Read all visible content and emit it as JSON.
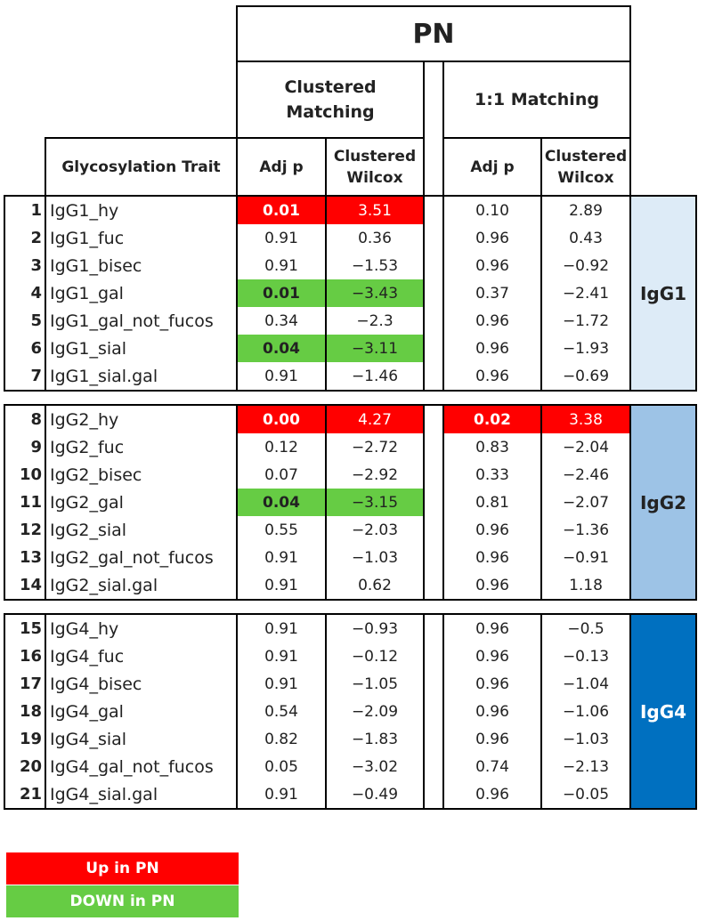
{
  "header": {
    "group": "PN",
    "clustered": "Clustered Matching",
    "one_to_one": "1:1 Matching",
    "trait": "Glycosylation Trait",
    "adjp": "Adj p",
    "wilcox": "Clustered Wilcox"
  },
  "groups": [
    {
      "label": "IgG1",
      "color": "#ddebf7",
      "rows": [
        {
          "n": "1",
          "trait": "IgG1_hy",
          "p1": "0.01",
          "w1": "3.51",
          "p2": "0.10",
          "w2": "2.89",
          "h1": "up",
          "h2": ""
        },
        {
          "n": "2",
          "trait": "IgG1_fuc",
          "p1": "0.91",
          "w1": "0.36",
          "p2": "0.96",
          "w2": "0.43",
          "h1": "",
          "h2": ""
        },
        {
          "n": "3",
          "trait": "IgG1_bisec",
          "p1": "0.91",
          "w1": "−1.53",
          "p2": "0.96",
          "w2": "−0.92",
          "h1": "",
          "h2": ""
        },
        {
          "n": "4",
          "trait": "IgG1_gal",
          "p1": "0.01",
          "w1": "−3.43",
          "p2": "0.37",
          "w2": "−2.41",
          "h1": "down",
          "h2": ""
        },
        {
          "n": "5",
          "trait": "IgG1_gal_not_fucos",
          "p1": "0.34",
          "w1": "−2.3",
          "p2": "0.96",
          "w2": "−1.72",
          "h1": "",
          "h2": ""
        },
        {
          "n": "6",
          "trait": "IgG1_sial",
          "p1": "0.04",
          "w1": "−3.11",
          "p2": "0.96",
          "w2": "−1.93",
          "h1": "down",
          "h2": ""
        },
        {
          "n": "7",
          "trait": "IgG1_sial.gal",
          "p1": "0.91",
          "w1": "−1.46",
          "p2": "0.96",
          "w2": "−0.69",
          "h1": "",
          "h2": ""
        }
      ]
    },
    {
      "label": "IgG2",
      "color": "#9dc3e6",
      "rows": [
        {
          "n": "8",
          "trait": "IgG2_hy",
          "p1": "0.00",
          "w1": "4.27",
          "p2": "0.02",
          "w2": "3.38",
          "h1": "up",
          "h2": "up"
        },
        {
          "n": "9",
          "trait": "IgG2_fuc",
          "p1": "0.12",
          "w1": "−2.72",
          "p2": "0.83",
          "w2": "−2.04",
          "h1": "",
          "h2": ""
        },
        {
          "n": "10",
          "trait": "IgG2_bisec",
          "p1": "0.07",
          "w1": "−2.92",
          "p2": "0.33",
          "w2": "−2.46",
          "h1": "",
          "h2": ""
        },
        {
          "n": "11",
          "trait": "IgG2_gal",
          "p1": "0.04",
          "w1": "−3.15",
          "p2": "0.81",
          "w2": "−2.07",
          "h1": "down",
          "h2": ""
        },
        {
          "n": "12",
          "trait": "IgG2_sial",
          "p1": "0.55",
          "w1": "−2.03",
          "p2": "0.96",
          "w2": "−1.36",
          "h1": "",
          "h2": ""
        },
        {
          "n": "13",
          "trait": "IgG2_gal_not_fucos",
          "p1": "0.91",
          "w1": "−1.03",
          "p2": "0.96",
          "w2": "−0.91",
          "h1": "",
          "h2": ""
        },
        {
          "n": "14",
          "trait": "IgG2_sial.gal",
          "p1": "0.91",
          "w1": "0.62",
          "p2": "0.96",
          "w2": "1.18",
          "h1": "",
          "h2": ""
        }
      ]
    },
    {
      "label": "IgG4",
      "color": "#0070c0",
      "rows": [
        {
          "n": "15",
          "trait": "IgG4_hy",
          "p1": "0.91",
          "w1": "−0.93",
          "p2": "0.96",
          "w2": "−0.5",
          "h1": "",
          "h2": ""
        },
        {
          "n": "16",
          "trait": "IgG4_fuc",
          "p1": "0.91",
          "w1": "−0.12",
          "p2": "0.96",
          "w2": "−0.13",
          "h1": "",
          "h2": ""
        },
        {
          "n": "17",
          "trait": "IgG4_bisec",
          "p1": "0.91",
          "w1": "−1.05",
          "p2": "0.96",
          "w2": "−1.04",
          "h1": "",
          "h2": ""
        },
        {
          "n": "18",
          "trait": "IgG4_gal",
          "p1": "0.54",
          "w1": "−2.09",
          "p2": "0.96",
          "w2": "−1.06",
          "h1": "",
          "h2": ""
        },
        {
          "n": "19",
          "trait": "IgG4_sial",
          "p1": "0.82",
          "w1": "−1.83",
          "p2": "0.96",
          "w2": "−1.03",
          "h1": "",
          "h2": ""
        },
        {
          "n": "20",
          "trait": "IgG4_gal_not_fucos",
          "p1": "0.05",
          "w1": "−3.02",
          "p2": "0.74",
          "w2": "−2.13",
          "h1": "",
          "h2": ""
        },
        {
          "n": "21",
          "trait": "IgG4_sial.gal",
          "p1": "0.91",
          "w1": "−0.49",
          "p2": "0.96",
          "w2": "−0.05",
          "h1": "",
          "h2": ""
        }
      ]
    }
  ],
  "legend": {
    "up": "Up in PN",
    "up_color": "#ff0000",
    "down": "DOWN in PN",
    "down_color": "#66cc44"
  }
}
